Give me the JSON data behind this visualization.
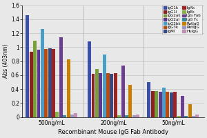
{
  "title": "Recombinant Mouse IgG Fab Antibody",
  "ylabel": "Abs (403nm)",
  "groups": [
    "500ng/mL",
    "200ng/mL",
    "50ng/mL"
  ],
  "series": [
    {
      "label": "IgG1k",
      "color": "#3B4EA8",
      "values": [
        1.46,
        1.08,
        0.5
      ]
    },
    {
      "label": "IgG1l",
      "color": "#8B2222",
      "values": [
        0.93,
        0.62,
        0.37
      ]
    },
    {
      "label": "IgG2ak",
      "color": "#7A9E3A",
      "values": [
        1.09,
        0.69,
        0.37
      ]
    },
    {
      "label": "IgG2al",
      "color": "#5E3890",
      "values": [
        0.96,
        0.63,
        0.36
      ]
    },
    {
      "label": "IgG2bk",
      "color": "#4A9DC4",
      "values": [
        1.26,
        0.89,
        0.42
      ]
    },
    {
      "label": "IgG3k",
      "color": "#B84C10",
      "values": [
        0.97,
        0.63,
        0.36
      ]
    },
    {
      "label": "IgMl",
      "color": "#384880",
      "values": [
        0.98,
        0.62,
        0.35
      ]
    },
    {
      "label": "IgAk",
      "color": "#9A2424",
      "values": [
        0.97,
        0.63,
        0.36
      ]
    },
    {
      "label": "IgEk",
      "color": "#8AB048",
      "values": [
        0.07,
        0.02,
        0.01
      ]
    },
    {
      "label": "IgG Fab",
      "color": "#6B3E8E",
      "values": [
        1.14,
        0.74,
        0.3
      ]
    },
    {
      "label": "IgG Fc",
      "color": "#3A8A9A",
      "values": [
        0.02,
        0.02,
        0.01
      ]
    },
    {
      "label": "RatIgG",
      "color": "#C87E00",
      "values": [
        0.83,
        0.46,
        0.18
      ]
    },
    {
      "label": "RbtIgG",
      "color": "#9898C0",
      "values": [
        0.03,
        0.02,
        0.01
      ]
    },
    {
      "label": "HuIgG",
      "color": "#C090B0",
      "values": [
        0.05,
        0.03,
        0.03
      ]
    }
  ],
  "ylim": [
    0,
    1.6
  ],
  "yticks": [
    0.0,
    0.2,
    0.4,
    0.6,
    0.8,
    1.0,
    1.2,
    1.4,
    1.6
  ],
  "background_color": "#e8e8e8"
}
